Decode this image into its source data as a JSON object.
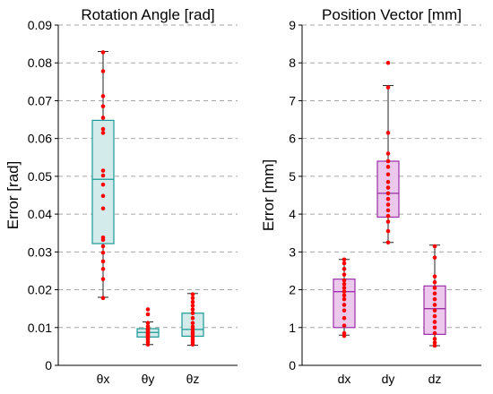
{
  "chart_data": [
    {
      "type": "box",
      "title": "Rotation Angle [rad]",
      "ylabel": "Error [rad]",
      "xlabel": "",
      "ylim": [
        0,
        0.09
      ],
      "yticks": [
        0,
        0.01,
        0.02,
        0.03,
        0.04,
        0.05,
        0.06,
        0.07,
        0.08,
        0.09
      ],
      "ytick_labels": [
        "0",
        "0.01",
        "0.02",
        "0.03",
        "0.04",
        "0.05",
        "0.06",
        "0.07",
        "0.08",
        "0.09"
      ],
      "grid": "horizontal dashed",
      "box_color": "#1a9a96",
      "box_fill": "#d3ebea",
      "point_color": "#ff0000",
      "categories": [
        "θx",
        "θy",
        "θz"
      ],
      "boxes": [
        {
          "category": "θx",
          "whisker_low": 0.018,
          "q1": 0.0322,
          "median": 0.0492,
          "q3": 0.0648,
          "whisker_high": 0.083,
          "points": [
            0.0178,
            0.0228,
            0.0255,
            0.0275,
            0.0298,
            0.0315,
            0.0332,
            0.0338,
            0.0415,
            0.0448,
            0.0478,
            0.0502,
            0.0515,
            0.0615,
            0.0625,
            0.0655,
            0.0685,
            0.0712,
            0.0778,
            0.0828
          ]
        },
        {
          "category": "θy",
          "whisker_low": 0.0055,
          "q1": 0.0075,
          "median": 0.0087,
          "q3": 0.0097,
          "whisker_high": 0.0115,
          "points": [
            0.0055,
            0.0062,
            0.0068,
            0.0072,
            0.0076,
            0.0079,
            0.0082,
            0.0085,
            0.0088,
            0.0091,
            0.0094,
            0.0097,
            0.0103,
            0.0112,
            0.0135,
            0.0148
          ]
        },
        {
          "category": "θz",
          "whisker_low": 0.0053,
          "q1": 0.0077,
          "median": 0.0095,
          "q3": 0.0138,
          "whisker_high": 0.019,
          "points": [
            0.0055,
            0.0062,
            0.0068,
            0.0075,
            0.0082,
            0.0088,
            0.0095,
            0.0102,
            0.0112,
            0.0125,
            0.0138,
            0.0148,
            0.0158,
            0.0168,
            0.0178,
            0.0188
          ]
        }
      ]
    },
    {
      "type": "box",
      "title": "Position Vector [mm]",
      "ylabel": "Error [mm]",
      "xlabel": "",
      "ylim": [
        0,
        9
      ],
      "yticks": [
        0,
        1,
        2,
        3,
        4,
        5,
        6,
        7,
        8,
        9
      ],
      "ytick_labels": [
        "0",
        "1",
        "2",
        "3",
        "4",
        "5",
        "6",
        "7",
        "8",
        "9"
      ],
      "grid": "horizontal dashed",
      "box_color": "#9a2fa6",
      "box_fill": "#ecc8ec",
      "point_color": "#ff0000",
      "categories": [
        "dx",
        "dy",
        "dz"
      ],
      "boxes": [
        {
          "category": "dx",
          "whisker_low": 0.8,
          "q1": 1.0,
          "median": 1.95,
          "q3": 2.28,
          "whisker_high": 2.8,
          "points": [
            0.78,
            0.85,
            1.05,
            1.25,
            1.45,
            1.6,
            1.75,
            1.85,
            1.95,
            2.05,
            2.15,
            2.25,
            2.4,
            2.55,
            2.7,
            2.8
          ]
        },
        {
          "category": "dy",
          "whisker_low": 3.25,
          "q1": 3.92,
          "median": 4.55,
          "q3": 5.4,
          "whisker_high": 7.4,
          "points": [
            3.25,
            3.55,
            3.8,
            3.95,
            4.1,
            4.25,
            4.4,
            4.55,
            4.7,
            4.85,
            5.05,
            5.25,
            5.4,
            5.6,
            6.15,
            7.35,
            8.0
          ]
        },
        {
          "category": "dz",
          "whisker_low": 0.52,
          "q1": 0.82,
          "median": 1.5,
          "q3": 2.1,
          "whisker_high": 3.18,
          "points": [
            0.52,
            0.6,
            0.7,
            0.85,
            1.0,
            1.15,
            1.3,
            1.45,
            1.6,
            1.75,
            1.9,
            2.05,
            2.2,
            2.35,
            2.85,
            3.15
          ]
        }
      ]
    }
  ]
}
